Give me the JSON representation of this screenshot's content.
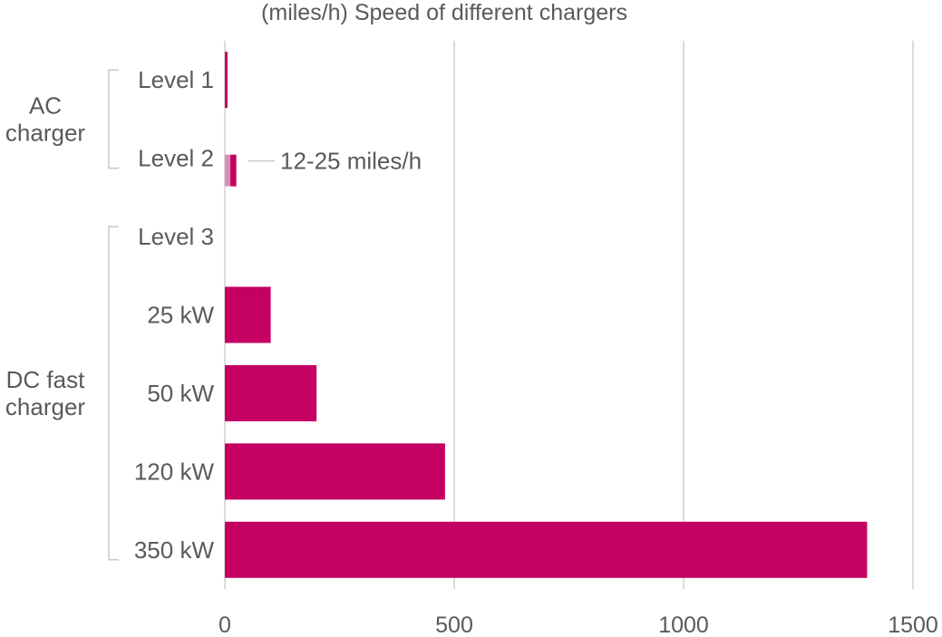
{
  "chart_data": {
    "type": "bar",
    "orientation": "horizontal",
    "title": "(miles/h) Speed of different chargers",
    "xlabel": "",
    "ylabel": "",
    "xlim": [
      0,
      1500
    ],
    "xticks": [
      "0",
      "500",
      "1000",
      "1500"
    ],
    "grid": true,
    "categories": [
      "Level 1",
      "Level 2",
      "Level 3",
      "25 kW",
      "50 kW",
      "120 kW",
      "350 kW"
    ],
    "values": [
      4,
      25,
      null,
      100,
      200,
      480,
      1400
    ],
    "range_low": [
      null,
      12,
      null,
      null,
      null,
      null,
      null
    ],
    "groups": [
      {
        "label": "AC charger",
        "categories": [
          "Level 1",
          "Level 2"
        ]
      },
      {
        "label": "DC fast charger",
        "categories": [
          "Level 3",
          "25 kW",
          "50 kW",
          "120 kW",
          "350 kW"
        ]
      }
    ],
    "annotations": [
      {
        "category": "Level 2",
        "text": "12-25 miles/h"
      }
    ],
    "colors": {
      "bar": "#c40063",
      "bar_light": "#d990b5",
      "grid": "#d0d0d0",
      "text": "#5a5a5a"
    }
  }
}
